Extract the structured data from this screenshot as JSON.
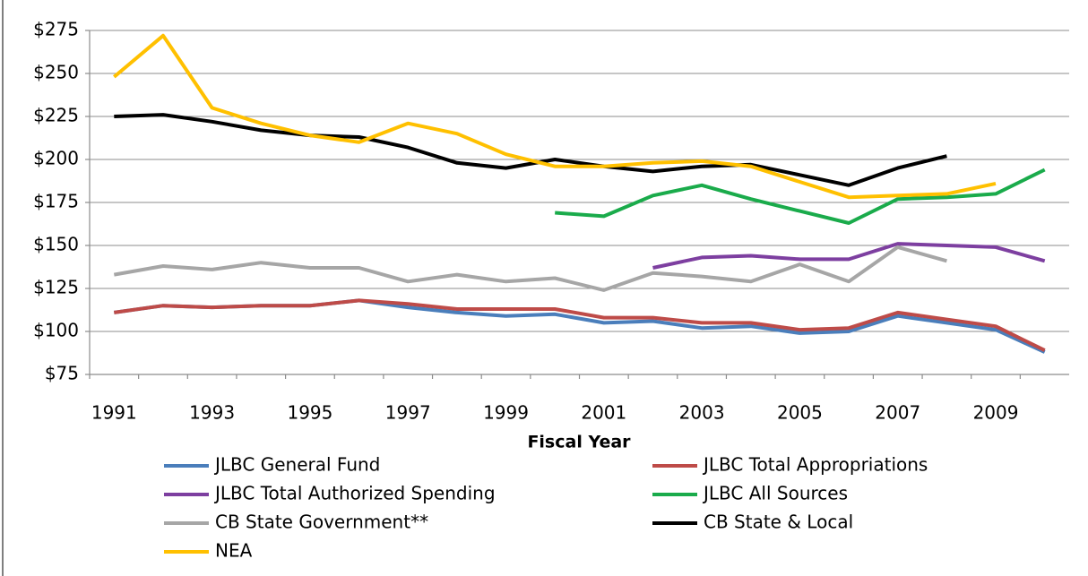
{
  "chart_data": {
    "type": "line",
    "x_label": "Fiscal Year",
    "categories": [
      "1991",
      null,
      "1993",
      null,
      "1995",
      null,
      "1997",
      null,
      "1999",
      null,
      "2001",
      null,
      "2003",
      null,
      "2005",
      null,
      "2007",
      null,
      "2009",
      null
    ],
    "ylim": [
      75,
      275
    ],
    "yticks": [
      {
        "value": 75,
        "label": "$75"
      },
      {
        "value": 100,
        "label": "$100"
      },
      {
        "value": 125,
        "label": "$125"
      },
      {
        "value": 150,
        "label": "$150"
      },
      {
        "value": 175,
        "label": "$175"
      },
      {
        "value": 200,
        "label": "$200"
      },
      {
        "value": 225,
        "label": "$225"
      },
      {
        "value": 250,
        "label": "$250"
      },
      {
        "value": 275,
        "label": "$275"
      }
    ],
    "grid": true,
    "legend": "bottom",
    "series": [
      {
        "name": "JLBC General Fund",
        "color": "#4a7ebb",
        "values": [
          111,
          115,
          114,
          115,
          115,
          118,
          114,
          111,
          109,
          110,
          105,
          106,
          102,
          103,
          99,
          100,
          109,
          105,
          101,
          88
        ]
      },
      {
        "name": "JLBC Total Appropriations",
        "color": "#be4b48",
        "values": [
          111,
          115,
          114,
          115,
          115,
          118,
          116,
          113,
          113,
          113,
          108,
          108,
          105,
          105,
          101,
          102,
          111,
          107,
          103,
          89
        ]
      },
      {
        "name": "JLBC Total Authorized Spending",
        "color": "#7d3fa0",
        "values": [
          null,
          null,
          null,
          null,
          null,
          null,
          null,
          null,
          null,
          null,
          null,
          137,
          143,
          144,
          142,
          142,
          151,
          150,
          149,
          141
        ]
      },
      {
        "name": "JLBC All Sources",
        "color": "#1aab4b",
        "values": [
          null,
          null,
          null,
          null,
          null,
          null,
          null,
          null,
          null,
          169,
          167,
          179,
          185,
          177,
          170,
          163,
          177,
          178,
          180,
          194
        ]
      },
      {
        "name": "CB State Government**",
        "color": "#a6a6a6",
        "values": [
          133,
          138,
          136,
          140,
          137,
          137,
          129,
          133,
          129,
          131,
          124,
          134,
          132,
          129,
          139,
          129,
          149,
          141,
          null,
          null
        ]
      },
      {
        "name": "CB State & Local",
        "color": "#000000",
        "values": [
          225,
          226,
          222,
          217,
          214,
          213,
          207,
          198,
          195,
          200,
          196,
          193,
          196,
          197,
          191,
          185,
          195,
          202,
          null,
          null
        ]
      },
      {
        "name": "NEA",
        "color": "#ffc000",
        "values": [
          248,
          272,
          230,
          221,
          214,
          210,
          221,
          215,
          203,
          196,
          196,
          198,
          199,
          196,
          187,
          178,
          179,
          180,
          186,
          null
        ]
      }
    ]
  }
}
